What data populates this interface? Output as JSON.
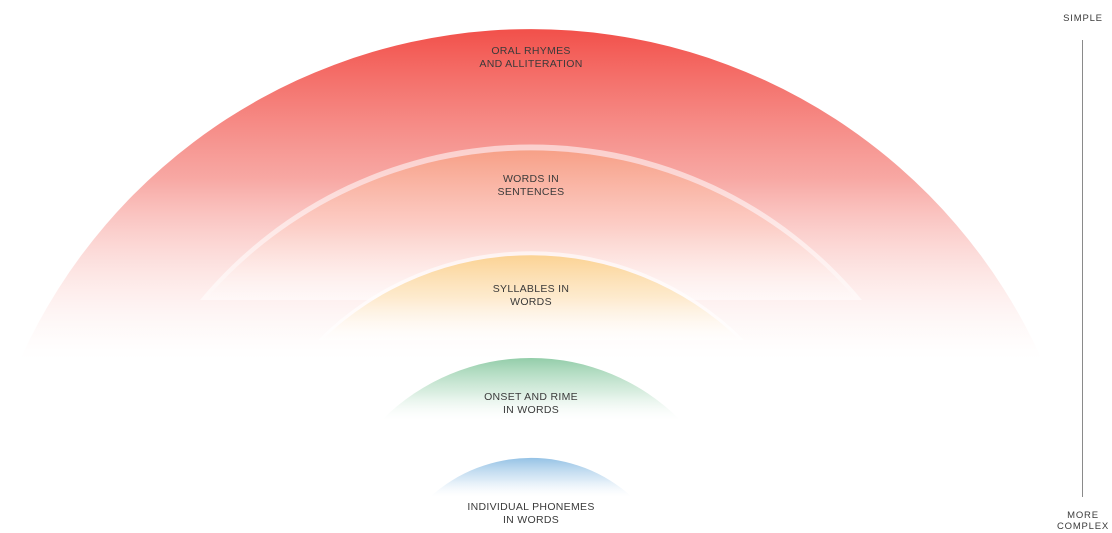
{
  "levels": [
    {
      "id": "oral-rhymes",
      "line1": "ORAL RHYMES",
      "line2": "AND ALLITERATION",
      "color": "#f2504a"
    },
    {
      "id": "words-in-sentences",
      "line1": "WORDS IN",
      "line2": "SENTENCES",
      "color": "#f79a86"
    },
    {
      "id": "syllables-in-words",
      "line1": "SYLLABLES IN",
      "line2": "WORDS",
      "color": "#fbd59a"
    },
    {
      "id": "onset-and-rime",
      "line1": "ONSET AND RIME",
      "line2": "IN WORDS",
      "color": "#9ed2b2"
    },
    {
      "id": "individual-phonemes",
      "line1": "INDIVIDUAL PHONEMES",
      "line2": "IN WORDS",
      "color": "#9ec6e6"
    }
  ],
  "scale": {
    "top_label": "SIMPLE",
    "bottom_line1": "MORE",
    "bottom_line2": "COMPLEX"
  }
}
